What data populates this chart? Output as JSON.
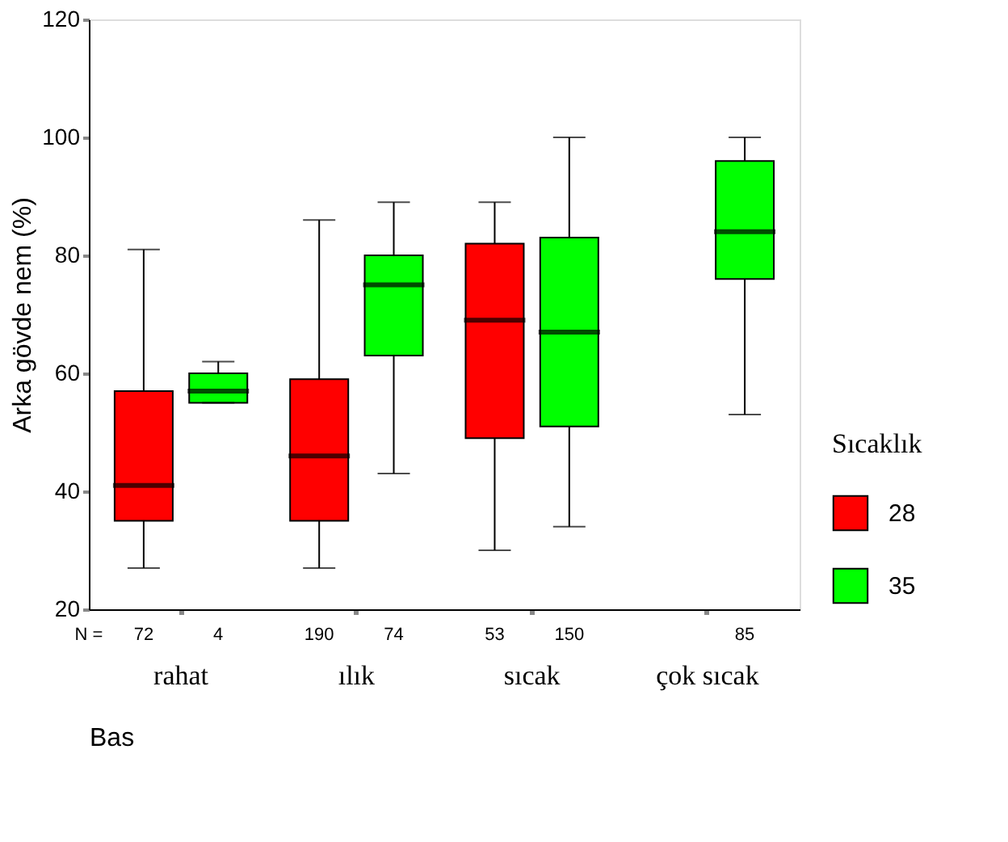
{
  "chart_data": {
    "type": "box",
    "xlabel": "Bas",
    "ylabel": "Arka gövde nem (%)",
    "legend_title": "Sıcaklık",
    "legend": "bottom right",
    "grid": false,
    "categories": [
      "rahat",
      "ılık",
      "sıcak",
      "çok sıcak"
    ],
    "ylim": [
      20,
      120
    ],
    "yticks": [
      20,
      40,
      60,
      80,
      100,
      120
    ],
    "series": [
      {
        "name": "28",
        "color": "#ff0000",
        "boxes": [
          {
            "low": 27,
            "q1": 35,
            "median": 41,
            "q3": 57,
            "high": 81
          },
          {
            "low": 27,
            "q1": 35,
            "median": 46,
            "q3": 59,
            "high": 86
          },
          {
            "low": 30,
            "q1": 49,
            "median": 69,
            "q3": 82,
            "high": 89
          },
          null
        ]
      },
      {
        "name": "35",
        "color": "#00ff00",
        "boxes": [
          {
            "low": 55,
            "q1": 55,
            "median": 57,
            "q3": 60,
            "high": 62
          },
          {
            "low": 43,
            "q1": 63,
            "median": 75,
            "q3": 80,
            "high": 89
          },
          {
            "low": 34,
            "q1": 51,
            "median": 67,
            "q3": 83,
            "high": 100
          },
          {
            "low": 53,
            "q1": 76,
            "median": 84,
            "q3": 96,
            "high": 100
          }
        ]
      }
    ],
    "annotations": [
      "N =",
      "72",
      "4",
      "190",
      "74",
      "53",
      "150",
      "85"
    ]
  }
}
